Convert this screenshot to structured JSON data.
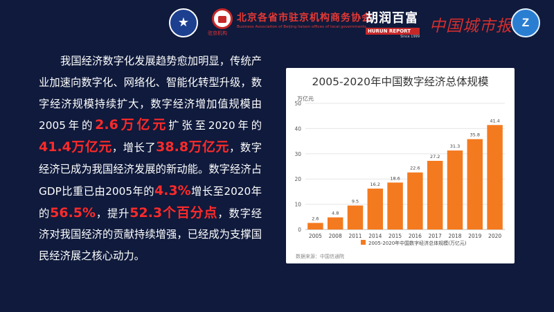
{
  "header": {
    "logo1_text": "★",
    "logo2_name_cn": "北京各省市驻京机构商务协会",
    "logo2_name_en": "Business Association of Beijing liaison offices of local governments",
    "logo2_sub": "驻京机构",
    "hurun_cn": "胡润百富",
    "hurun_en": "HURUN REPORT",
    "hurun_since": "Since 1999",
    "city_paper": "中国城市报",
    "logo5_text": "Z"
  },
  "paragraph": {
    "p1": "我国经济数字化发展趋势愈加明显，传统产业加速向数字化、网络化、智能化转型升级，数字经济规模持续扩大，数字经济增加值规模由2005年的",
    "h1": "2.6万亿元",
    "p2": "扩张至2020年的",
    "h2": "41.4万亿元",
    "p3": "，增长了",
    "h3": "38.8万亿元",
    "p4": "，数字经济已成为我国经济发展的新动能。数字经济占GDP比重已由2005年的",
    "h4": "4.3%",
    "p5": "增长至2020年的",
    "h5": "56.5%",
    "p6": "，提升",
    "h6": "52.3个百分点",
    "p7": "，数字经济对我国经济的贡献持续增强，已经成为支撑国民经济展之核心动力。"
  },
  "chart_data": {
    "type": "bar",
    "title": "2005-2020年中国数字经济总体规模",
    "ylabel": "万亿元",
    "categories": [
      "2005",
      "2008",
      "2011",
      "2014",
      "2015",
      "2016",
      "2017",
      "2018",
      "2019",
      "2020"
    ],
    "series": [
      {
        "name": "2005-2020年中国数字经济总体规模(万亿元)",
        "values": [
          2.6,
          4.8,
          9.5,
          16.2,
          18.6,
          22.6,
          27.2,
          31.3,
          35.8,
          41.4
        ]
      }
    ],
    "ylim": [
      0,
      50
    ],
    "yticks": [
      0,
      10,
      20,
      30,
      40,
      50
    ],
    "grid": true,
    "legend": "bottom",
    "bar_color": "#f47a1f",
    "source": "数据来源：中国信通院"
  }
}
